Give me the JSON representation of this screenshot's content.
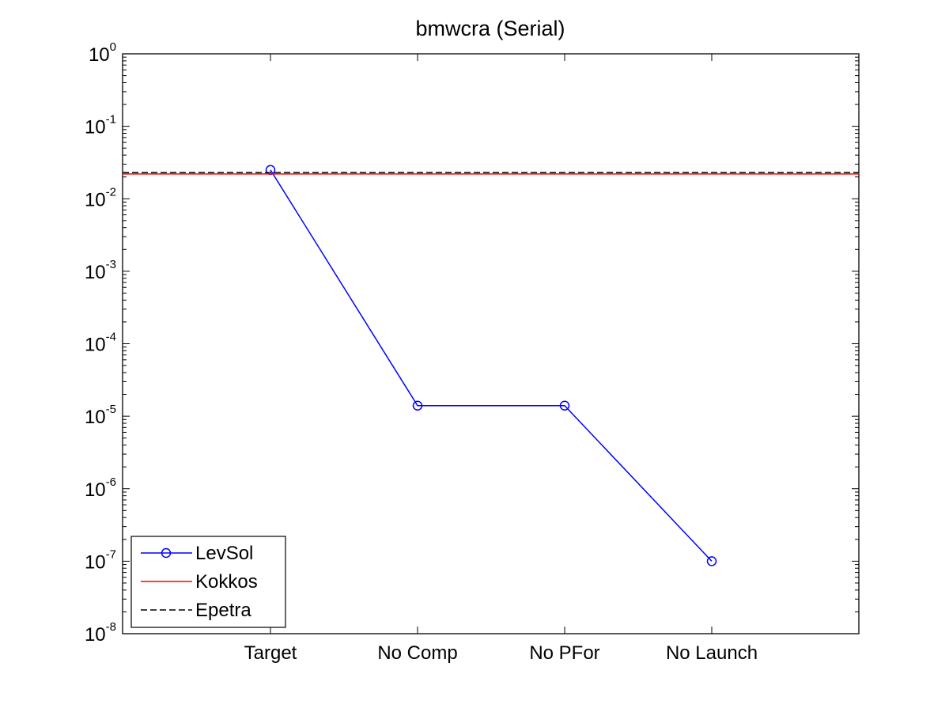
{
  "chart_data": {
    "type": "line",
    "title": "bmwcra (Serial)",
    "xlabel": "",
    "ylabel": "",
    "categories": [
      "Target",
      "No Comp",
      "No PFor",
      "No Launch"
    ],
    "yscale": "log",
    "ylim": [
      1e-08,
      1
    ],
    "y_ticks": [
      {
        "base": "10",
        "exp": "-8",
        "value": 1e-08
      },
      {
        "base": "10",
        "exp": "-7",
        "value": 1e-07
      },
      {
        "base": "10",
        "exp": "-6",
        "value": 1e-06
      },
      {
        "base": "10",
        "exp": "-5",
        "value": 1e-05
      },
      {
        "base": "10",
        "exp": "-4",
        "value": 0.0001
      },
      {
        "base": "10",
        "exp": "-3",
        "value": 0.001
      },
      {
        "base": "10",
        "exp": "-2",
        "value": 0.01
      },
      {
        "base": "10",
        "exp": "-1",
        "value": 0.1
      },
      {
        "base": "10",
        "exp": "0",
        "value": 1
      }
    ],
    "series": [
      {
        "name": "LevSol",
        "values": [
          0.025,
          1.4e-05,
          1.4e-05,
          1e-07
        ],
        "color": "#0000ff",
        "style": "solid",
        "marker": "circle"
      },
      {
        "name": "Kokkos",
        "constant": 0.022,
        "color": "#ff0000",
        "style": "solid"
      },
      {
        "name": "Epetra",
        "constant": 0.023,
        "color": "#000000",
        "style": "dashed"
      }
    ],
    "legend": "bottom-left",
    "grid": false
  }
}
